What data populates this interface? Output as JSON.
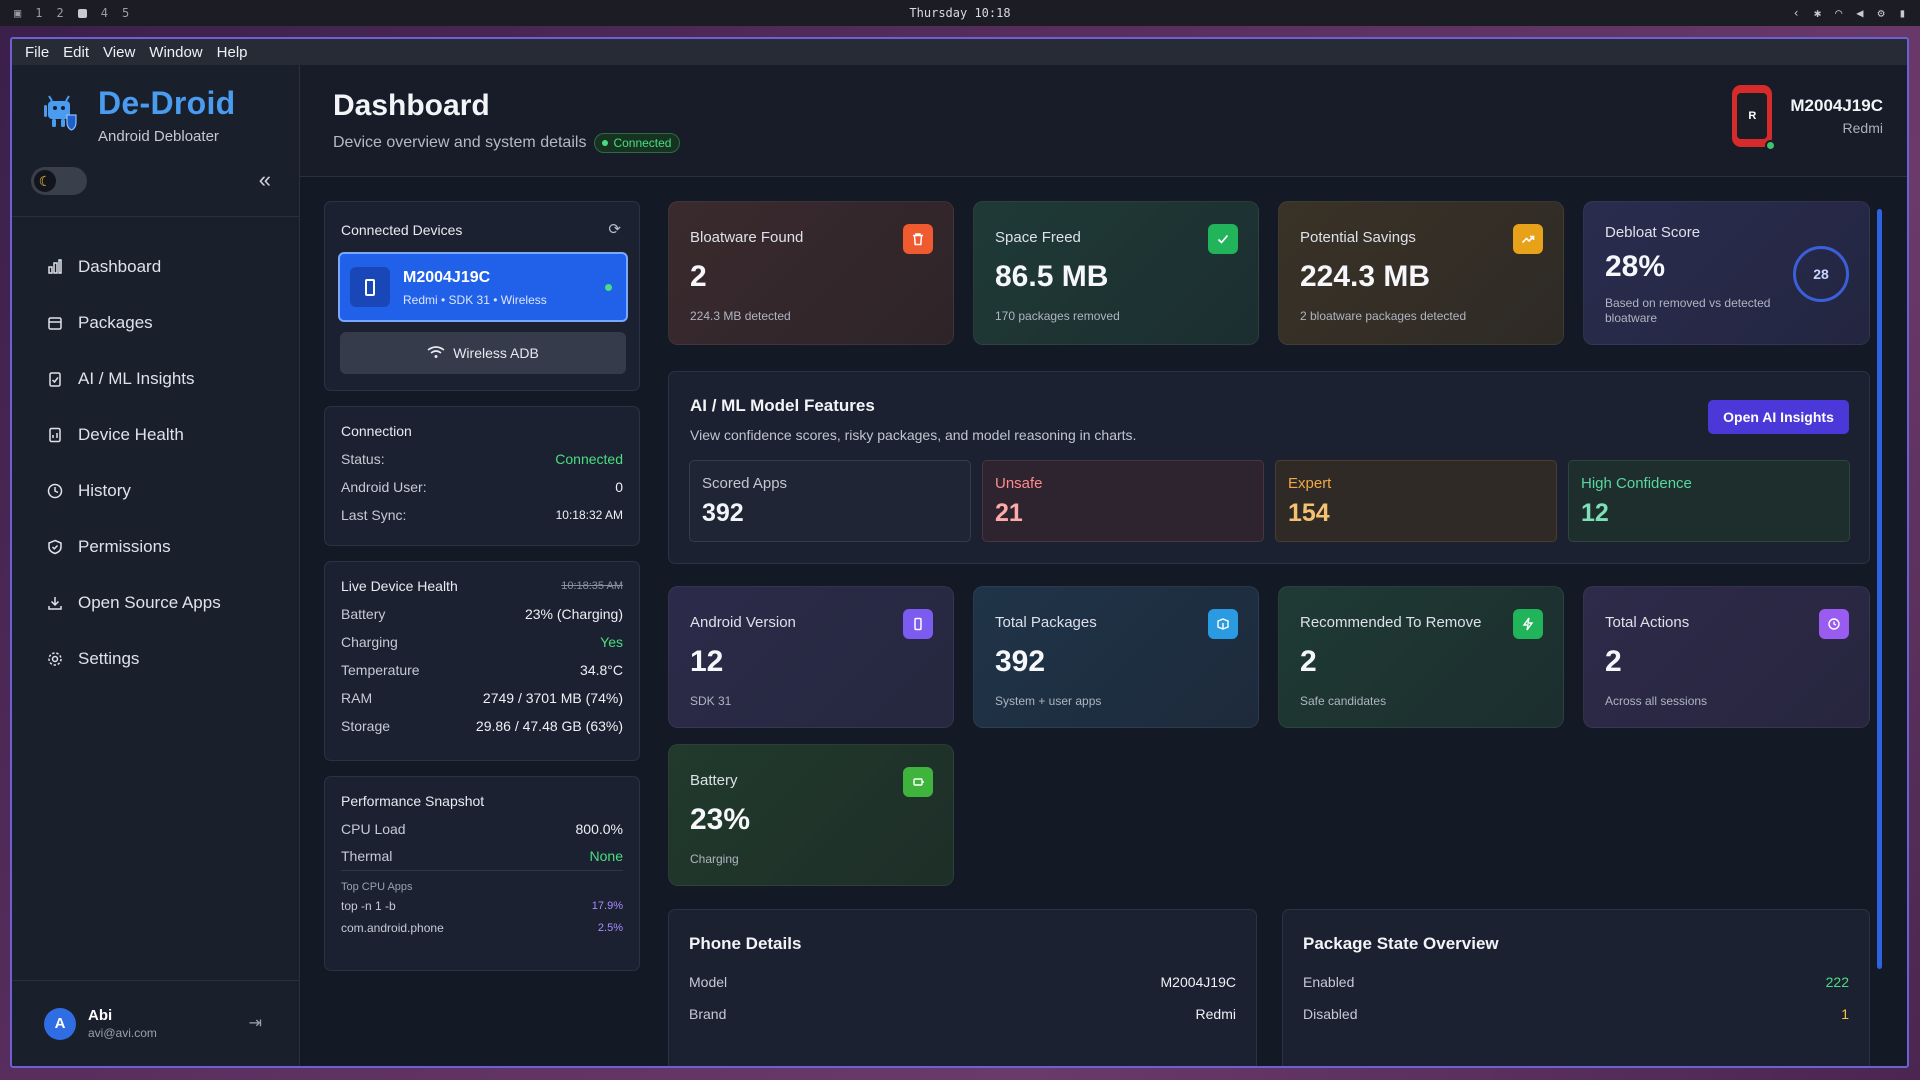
{
  "system": {
    "workspaces": [
      "1",
      "2",
      "4",
      "5"
    ],
    "clock": "Thursday 10:18"
  },
  "menu": [
    "File",
    "Edit",
    "View",
    "Window",
    "Help"
  ],
  "brand": {
    "name": "De-Droid",
    "subtitle": "Android Debloater"
  },
  "nav": [
    {
      "label": "Dashboard",
      "icon": "bar-chart-icon"
    },
    {
      "label": "Packages",
      "icon": "package-icon"
    },
    {
      "label": "AI / ML Insights",
      "icon": "clipboard-icon"
    },
    {
      "label": "Device Health",
      "icon": "health-icon"
    },
    {
      "label": "History",
      "icon": "clock-icon"
    },
    {
      "label": "Permissions",
      "icon": "shield-icon"
    },
    {
      "label": "Open Source Apps",
      "icon": "download-icon"
    },
    {
      "label": "Settings",
      "icon": "gear-icon"
    }
  ],
  "user": {
    "initial": "A",
    "name": "Abi",
    "email": "avi@avi.com"
  },
  "header": {
    "title": "Dashboard",
    "subtitle": "Device overview and system details",
    "status": "Connected",
    "device_name": "M2004J19C",
    "device_brand": "Redmi",
    "device_letter": "R"
  },
  "connected_devices": {
    "title": "Connected Devices",
    "device": {
      "name": "M2004J19C",
      "meta": "Redmi • SDK 31 • Wireless"
    },
    "wireless_label": "Wireless ADB"
  },
  "connection": {
    "title": "Connection",
    "rows": [
      {
        "k": "Status:",
        "v": "Connected"
      },
      {
        "k": "Android User:",
        "v": "0"
      },
      {
        "k": "Last Sync:",
        "v": "10:18:32 AM"
      }
    ]
  },
  "live_health": {
    "title": "Live Device Health",
    "time": "10:18:35 AM",
    "rows": [
      {
        "k": "Battery",
        "v": "23% (Charging)"
      },
      {
        "k": "Charging",
        "v": "Yes"
      },
      {
        "k": "Temperature",
        "v": "34.8°C"
      },
      {
        "k": "RAM",
        "v": "2749 / 3701 MB (74%)"
      },
      {
        "k": "Storage",
        "v": "29.86 / 47.48 GB (63%)"
      }
    ]
  },
  "performance": {
    "title": "Performance Snapshot",
    "rows": [
      {
        "k": "CPU Load",
        "v": "800.0%"
      },
      {
        "k": "Thermal",
        "v": "None"
      }
    ],
    "top_title": "Top CPU Apps",
    "top": [
      {
        "k": "top -n 1 -b",
        "v": "17.9%"
      },
      {
        "k": "com.android.phone",
        "v": "2.5%"
      }
    ]
  },
  "stats_top": [
    {
      "title": "Bloatware Found",
      "value": "2",
      "sub": "224.3 MB detected",
      "icon": "trash-icon",
      "color": "#ef5a2e"
    },
    {
      "title": "Space Freed",
      "value": "86.5 MB",
      "sub": "170 packages removed",
      "icon": "check-icon",
      "color": "#22b45a"
    },
    {
      "title": "Potential Savings",
      "value": "224.3 MB",
      "sub": "2 bloatware packages detected",
      "icon": "trending-up-icon",
      "color": "#e8a21a"
    }
  ],
  "debloat": {
    "title": "Debloat Score",
    "value": "28%",
    "sub": "Based on removed vs detected bloatware",
    "ring": "28"
  },
  "ai": {
    "title": "AI / ML Model Features",
    "desc": "View confidence scores, risky packages, and model reasoning in charts.",
    "button": "Open AI Insights",
    "minis": [
      {
        "label": "Scored Apps",
        "value": "392"
      },
      {
        "label": "Unsafe",
        "value": "21"
      },
      {
        "label": "Expert",
        "value": "154"
      },
      {
        "label": "High Confidence",
        "value": "12"
      }
    ]
  },
  "stats_mid": [
    {
      "title": "Android Version",
      "value": "12",
      "sub": "SDK 31",
      "icon": "phone-icon",
      "color": "#7c5cf0"
    },
    {
      "title": "Total Packages",
      "value": "392",
      "sub": "System + user apps",
      "icon": "box-icon",
      "color": "#2a9be0"
    },
    {
      "title": "Recommended To Remove",
      "value": "2",
      "sub": "Safe candidates",
      "icon": "bolt-icon",
      "color": "#22b45a"
    },
    {
      "title": "Total Actions",
      "value": "2",
      "sub": "Across all sessions",
      "icon": "clock-icon",
      "color": "#9a5cf0"
    }
  ],
  "battery_card": {
    "title": "Battery",
    "value": "23%",
    "sub": "Charging",
    "icon": "battery-icon",
    "color": "#3fb43c"
  },
  "phone_details": {
    "title": "Phone Details",
    "rows": [
      {
        "k": "Model",
        "v": "M2004J19C"
      },
      {
        "k": "Brand",
        "v": "Redmi"
      }
    ]
  },
  "package_state": {
    "title": "Package State Overview",
    "rows": [
      {
        "k": "Enabled",
        "v": "222"
      },
      {
        "k": "Disabled",
        "v": "1"
      }
    ]
  }
}
